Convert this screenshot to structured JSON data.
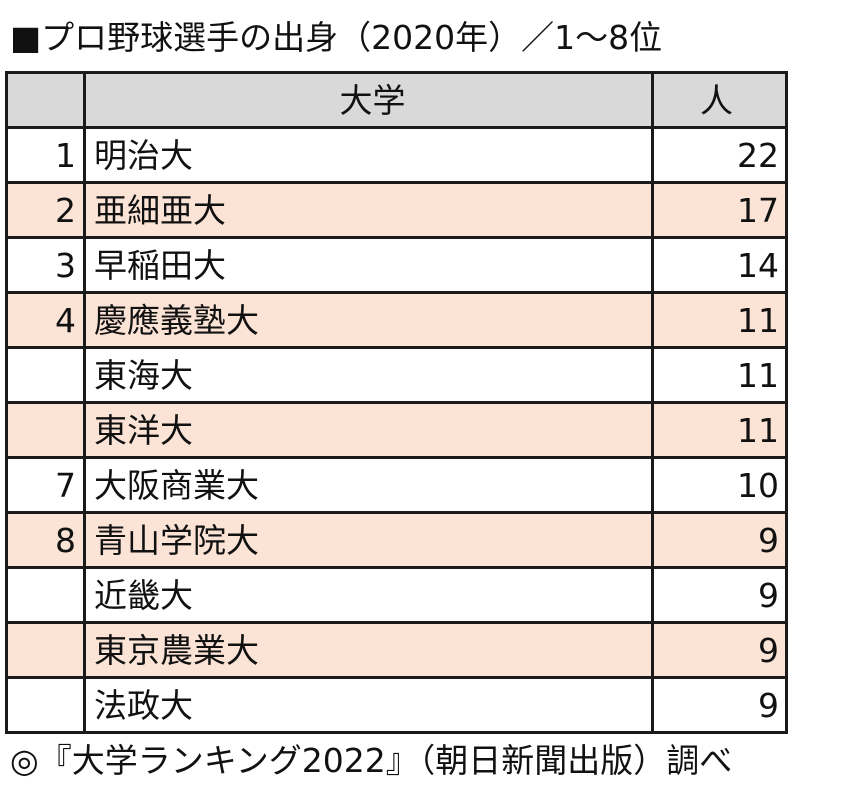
{
  "title": "■プロ野球選手の出身（2020年）／1〜8位",
  "table": {
    "headers": {
      "rank": "",
      "university": "大学",
      "count": "人"
    },
    "rows": [
      {
        "rank": "1",
        "university": "明治大",
        "count": "22"
      },
      {
        "rank": "2",
        "university": "亜細亜大",
        "count": "17"
      },
      {
        "rank": "3",
        "university": "早稲田大",
        "count": "14"
      },
      {
        "rank": "4",
        "university": "慶應義塾大",
        "count": "11"
      },
      {
        "rank": "",
        "university": "東海大",
        "count": "11"
      },
      {
        "rank": "",
        "university": "東洋大",
        "count": "11"
      },
      {
        "rank": "7",
        "university": "大阪商業大",
        "count": "10"
      },
      {
        "rank": "8",
        "university": "青山学院大",
        "count": "9"
      },
      {
        "rank": "",
        "university": "近畿大",
        "count": "9"
      },
      {
        "rank": "",
        "university": "東京農業大",
        "count": "9"
      },
      {
        "rank": "",
        "university": "法政大",
        "count": "9"
      }
    ]
  },
  "source": "◎『大学ランキング2022』（朝日新聞出版）調べ",
  "colors": {
    "header_bg": "#d9d9d9",
    "alt_row_bg": "#fbe3d6",
    "border": "#1a1a1a"
  }
}
